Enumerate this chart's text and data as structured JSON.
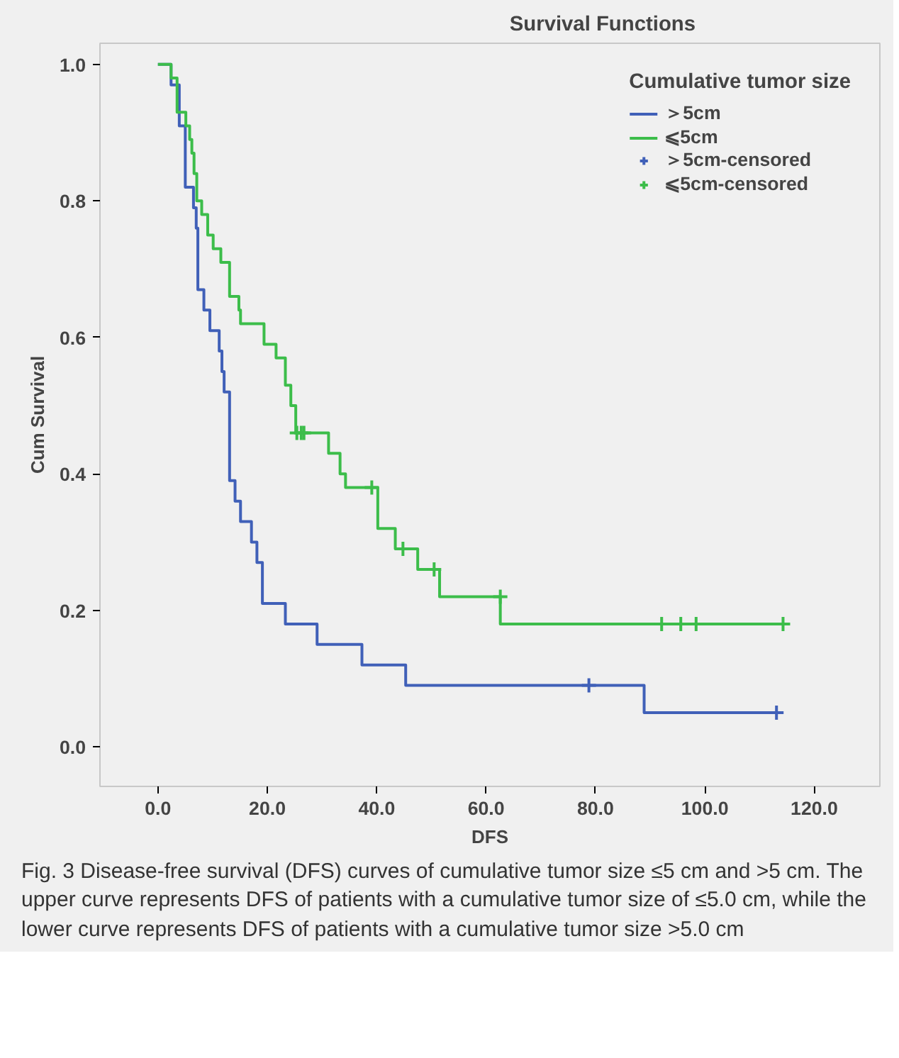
{
  "chart_data": {
    "type": "step",
    "title": "Survival Functions",
    "xlabel": "DFS",
    "ylabel": "Cum Survival",
    "legend_title": "Cumulative tumor size",
    "legend": "top right",
    "grid": false,
    "xlim": [
      -10.6,
      132
    ],
    "ylim": [
      -0.058,
      1.031
    ],
    "xticks": [
      {
        "value": 0,
        "label": "0.0"
      },
      {
        "value": 20,
        "label": "20.0"
      },
      {
        "value": 40,
        "label": "40.0"
      },
      {
        "value": 60,
        "label": "60.0"
      },
      {
        "value": 80,
        "label": "80.0"
      },
      {
        "value": 100,
        "label": "100.0"
      },
      {
        "value": 120,
        "label": "120.0"
      }
    ],
    "yticks": [
      {
        "value": 0,
        "label": "0.0"
      },
      {
        "value": 0.2,
        "label": "0.2"
      },
      {
        "value": 0.4,
        "label": "0.4"
      },
      {
        "value": 0.6,
        "label": "0.6"
      },
      {
        "value": 0.8,
        "label": "0.8"
      },
      {
        "value": 1.0,
        "label": "1.0"
      }
    ],
    "series": [
      {
        "name": "＞5cm",
        "color": "#4060b8",
        "x": [
          0,
          2.4,
          3.9,
          5.0,
          6.5,
          7.0,
          7.3,
          8.4,
          9.5,
          11.2,
          11.7,
          12.1,
          13.1,
          14.1,
          15.1,
          17.1,
          18.1,
          19.1,
          23.3,
          29.1,
          37.3,
          45.3,
          88.9,
          113.1
        ],
        "values": [
          1.0,
          0.97,
          0.91,
          0.82,
          0.79,
          0.76,
          0.67,
          0.64,
          0.61,
          0.58,
          0.55,
          0.52,
          0.39,
          0.36,
          0.33,
          0.3,
          0.27,
          0.21,
          0.18,
          0.15,
          0.12,
          0.09,
          0.05,
          0.05
        ]
      },
      {
        "name": "⩽5cm",
        "color": "#3cbd4a",
        "x": [
          0,
          2.4,
          3.5,
          5.1,
          5.8,
          6.2,
          6.6,
          7.1,
          8.0,
          9.1,
          10.1,
          11.5,
          13.1,
          14.8,
          15.1,
          19.4,
          21.6,
          23.3,
          24.3,
          25.2,
          31.2,
          33.3,
          34.3,
          40.2,
          43.4,
          47.5,
          51.5,
          62.6,
          114.3
        ],
        "values": [
          1.0,
          0.98,
          0.93,
          0.91,
          0.89,
          0.87,
          0.84,
          0.8,
          0.78,
          0.75,
          0.73,
          0.71,
          0.66,
          0.64,
          0.62,
          0.59,
          0.57,
          0.53,
          0.5,
          0.46,
          0.43,
          0.4,
          0.38,
          0.32,
          0.29,
          0.26,
          0.22,
          0.18,
          0.18
        ]
      },
      {
        "name": "＞5cm-censored",
        "type": "scatter",
        "marker": "cross",
        "color": "#4060b8",
        "x": [
          78.8,
          113.1
        ],
        "values": [
          0.09,
          0.05
        ]
      },
      {
        "name": "⩽5cm-censored",
        "type": "scatter",
        "marker": "cross",
        "color": "#3cbd4a",
        "x": [
          25.4,
          26.2,
          26.7,
          39.1,
          44.8,
          50.5,
          62.6,
          92.1,
          95.6,
          98.4,
          114.3
        ],
        "values": [
          0.46,
          0.46,
          0.46,
          0.38,
          0.29,
          0.26,
          0.22,
          0.18,
          0.18,
          0.18,
          0.18
        ]
      }
    ],
    "annotations": [
      "Fig. 3 Disease-free survival (DFS) curves of cumulative tumor size ≤5 cm and >5 cm. The upper curve represents DFS of patients with a cumulative tumor size of ≤5.0 cm, while the lower curve represents DFS of patients with a cumulative tumor size >5.0 cm"
    ]
  }
}
